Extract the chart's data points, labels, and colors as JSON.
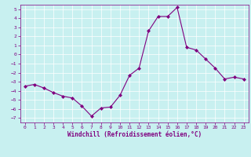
{
  "x": [
    0,
    1,
    2,
    3,
    4,
    5,
    6,
    7,
    8,
    9,
    10,
    11,
    12,
    13,
    14,
    15,
    16,
    17,
    18,
    19,
    20,
    21,
    22,
    23
  ],
  "y": [
    -3.5,
    -3.3,
    -3.7,
    -4.2,
    -4.6,
    -4.8,
    -5.7,
    -6.8,
    -5.9,
    -5.8,
    -4.5,
    -2.3,
    -1.5,
    2.6,
    4.2,
    4.2,
    5.2,
    0.8,
    0.5,
    -0.5,
    -1.5,
    -2.7,
    -2.5,
    -2.7
  ],
  "line_color": "#800080",
  "marker": "D",
  "marker_size": 2,
  "bg_color": "#c8f0f0",
  "grid_color": "#ffffff",
  "text_color": "#800080",
  "xlabel": "Windchill (Refroidissement éolien,°C)",
  "xlim": [
    -0.5,
    23.5
  ],
  "ylim": [
    -7.5,
    5.5
  ],
  "xticks": [
    0,
    1,
    2,
    3,
    4,
    5,
    6,
    7,
    8,
    9,
    10,
    11,
    12,
    13,
    14,
    15,
    16,
    17,
    18,
    19,
    20,
    21,
    22,
    23
  ],
  "yticks": [
    5,
    4,
    3,
    2,
    1,
    0,
    -1,
    -2,
    -3,
    -4,
    -5,
    -6,
    -7
  ],
  "tick_fontsize": 4.5,
  "xlabel_fontsize": 5.5,
  "linewidth": 0.8
}
